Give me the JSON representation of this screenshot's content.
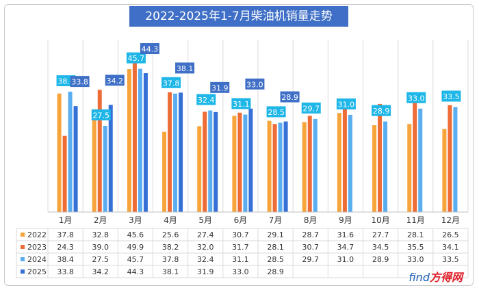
{
  "colors": {
    "s2022": "#f7a43b",
    "s2023": "#ee6c36",
    "s2024": "#5aaef0",
    "s2025": "#3470d5",
    "title_bg": "#3f6fc6",
    "label_bg": "#1fb7e8"
  },
  "logo": {
    "text": "find",
    "cn": "方得网"
  },
  "chart_data": {
    "type": "bar",
    "title": "2022-2025年1-7月柴油机销量走势",
    "categories": [
      "1月",
      "2月",
      "3月",
      "4月",
      "5月",
      "6月",
      "7月",
      "8月",
      "9月",
      "10月",
      "11月",
      "12月"
    ],
    "series": [
      {
        "name": "2022",
        "values": [
          37.8,
          32.8,
          45.6,
          25.6,
          27.4,
          30.7,
          29.1,
          28.7,
          31.6,
          27.7,
          28.1,
          26.5
        ]
      },
      {
        "name": "2023",
        "values": [
          24.3,
          39.0,
          49.9,
          38.2,
          32.0,
          31.7,
          28.1,
          30.7,
          34.7,
          34.5,
          35.5,
          34.1
        ]
      },
      {
        "name": "2024",
        "values": [
          38.4,
          27.5,
          45.7,
          37.8,
          32.4,
          31.1,
          28.5,
          29.7,
          31.0,
          28.9,
          33.0,
          33.5
        ]
      },
      {
        "name": "2025",
        "values": [
          33.8,
          34.2,
          44.3,
          38.1,
          31.9,
          33.0,
          28.9,
          null,
          null,
          null,
          null,
          null
        ]
      }
    ],
    "data_labels": [
      "2024",
      "2025"
    ],
    "data_table": true,
    "grid": true,
    "ylim": [
      0,
      55
    ]
  }
}
